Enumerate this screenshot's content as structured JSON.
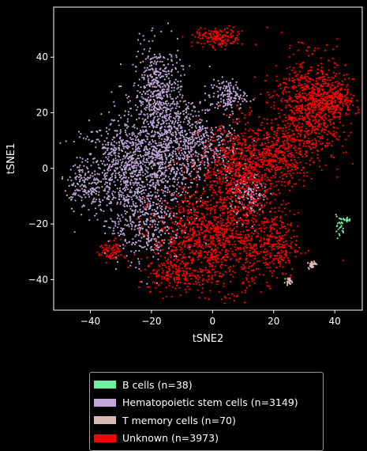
{
  "chart_data": {
    "type": "scatter",
    "title": "",
    "xlabel": "tSNE2",
    "ylabel": "tSNE1",
    "xlim": [
      -52,
      49
    ],
    "ylim": [
      -51,
      58
    ],
    "xticks": [
      -40,
      -20,
      0,
      20,
      40
    ],
    "yticks": [
      -40,
      -20,
      0,
      20,
      40
    ],
    "grid": false,
    "legend_position": "bottom",
    "background": "#000000",
    "series": [
      {
        "name": "B cells (n=38)",
        "color": "#6ef0a0",
        "count": 38,
        "clusters": [
          {
            "cx": 41.5,
            "cy": -21,
            "sx": 0.8,
            "sy": 2.0,
            "w": 0.6
          },
          {
            "cx": 43.5,
            "cy": -18.5,
            "sx": 1.0,
            "sy": 0.5,
            "w": 0.4
          }
        ]
      },
      {
        "name": "Hematopoietic stem cells (n=3149)",
        "color": "#c0a6d6",
        "count": 3149,
        "clusters": [
          {
            "cx": -27,
            "cy": 0,
            "sx": 8,
            "sy": 9,
            "w": 0.3
          },
          {
            "cx": -18,
            "cy": 26,
            "sx": 4,
            "sy": 9,
            "w": 0.18
          },
          {
            "cx": -12,
            "cy": 5,
            "sx": 6,
            "sy": 9,
            "w": 0.16
          },
          {
            "cx": 5,
            "cy": 26,
            "sx": 3,
            "sy": 3,
            "w": 0.05
          },
          {
            "cx": -22,
            "cy": -20,
            "sx": 6,
            "sy": 7,
            "w": 0.12
          },
          {
            "cx": -42,
            "cy": -6,
            "sx": 3,
            "sy": 4,
            "w": 0.04
          },
          {
            "cx": 12,
            "cy": -10,
            "sx": 3,
            "sy": 4,
            "w": 0.05
          },
          {
            "cx": 0,
            "cy": 8,
            "sx": 6,
            "sy": 5,
            "w": 0.06
          },
          {
            "cx": -8,
            "cy": 14,
            "sx": 5,
            "sy": 4,
            "w": 0.04
          }
        ]
      },
      {
        "name": "T memory cells (n=70)",
        "color": "#d8b8b4",
        "count": 70,
        "clusters": [
          {
            "cx": 32.5,
            "cy": -34.5,
            "sx": 0.6,
            "sy": 0.7,
            "w": 0.6
          },
          {
            "cx": 25,
            "cy": -40.5,
            "sx": 0.5,
            "sy": 0.5,
            "w": 0.4
          }
        ]
      },
      {
        "name": "Unknown (n=3973)",
        "color": "#ff0000",
        "count": 3973,
        "clusters": [
          {
            "cx": 0,
            "cy": -25,
            "sx": 10,
            "sy": 9,
            "w": 0.3
          },
          {
            "cx": 10,
            "cy": 0,
            "sx": 7,
            "sy": 8,
            "w": 0.2
          },
          {
            "cx": 32,
            "cy": 22,
            "sx": 6,
            "sy": 9,
            "w": 0.22
          },
          {
            "cx": 22,
            "cy": 5,
            "sx": 5,
            "sy": 5,
            "w": 0.07
          },
          {
            "cx": 40,
            "cy": 25,
            "sx": 3,
            "sy": 3,
            "w": 0.05
          },
          {
            "cx": 2,
            "cy": 47,
            "sx": 4,
            "sy": 1.8,
            "w": 0.04
          },
          {
            "cx": -33,
            "cy": -30,
            "sx": 2,
            "sy": 2,
            "w": 0.02
          },
          {
            "cx": 20,
            "cy": -28,
            "sx": 4,
            "sy": 6,
            "w": 0.06
          },
          {
            "cx": -12,
            "cy": -38,
            "sx": 5,
            "sy": 3,
            "w": 0.04
          }
        ]
      }
    ]
  },
  "legend": {
    "items": [
      {
        "label": "B cells (n=38)",
        "color": "#6ef0a0"
      },
      {
        "label": "Hematopoietic stem cells (n=3149)",
        "color": "#c0a6d6"
      },
      {
        "label": "T memory cells (n=70)",
        "color": "#d8b8b4"
      },
      {
        "label": "Unknown (n=3973)",
        "color": "#ff0000"
      }
    ]
  }
}
